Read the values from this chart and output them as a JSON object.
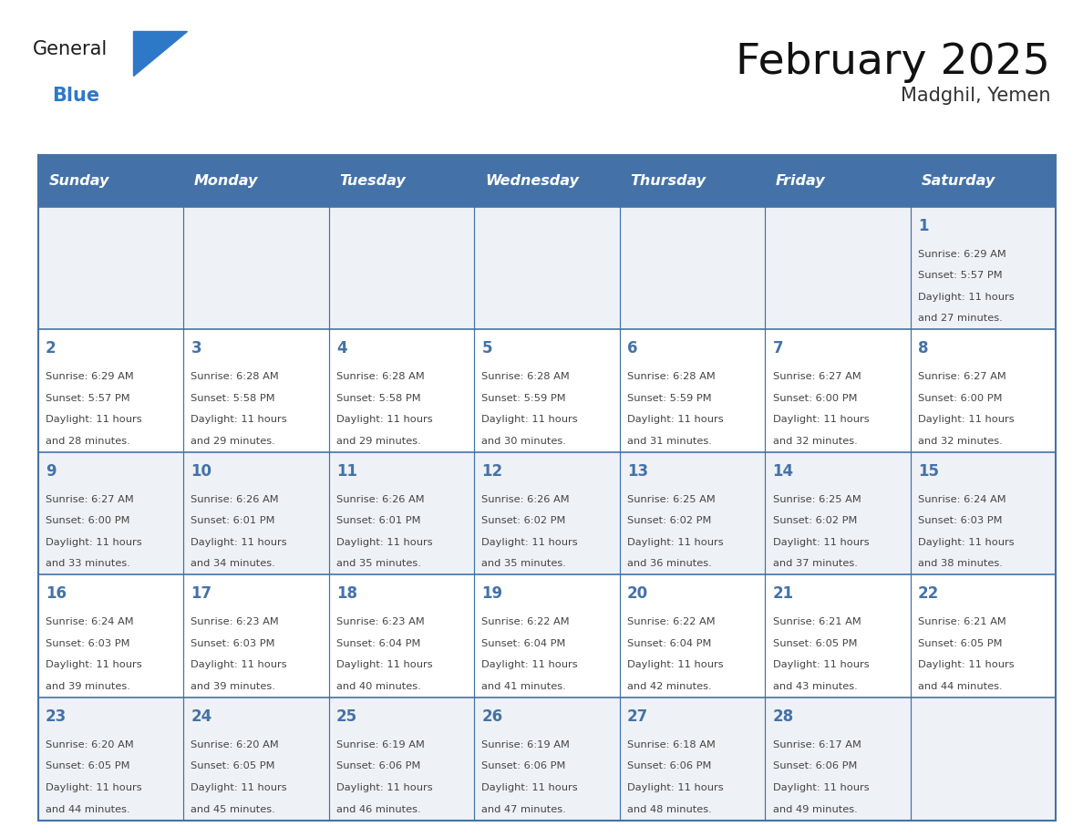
{
  "title": "February 2025",
  "subtitle": "Madghil, Yemen",
  "header_color": "#4472a8",
  "header_text_color": "#ffffff",
  "weekdays": [
    "Sunday",
    "Monday",
    "Tuesday",
    "Wednesday",
    "Thursday",
    "Friday",
    "Saturday"
  ],
  "background_color": "#ffffff",
  "row_bg_odd": "#eef2f7",
  "row_bg_even": "#ffffff",
  "grid_color": "#4472a8",
  "day_color": "#4472a8",
  "text_color": "#444444",
  "logo_general_color": "#1a1a1a",
  "logo_blue_color": "#2e78c8",
  "calendar": [
    [
      null,
      null,
      null,
      null,
      null,
      null,
      {
        "day": 1,
        "sunrise": "6:29 AM",
        "sunset": "5:57 PM",
        "daylight": "11 hours",
        "daylight2": "and 27 minutes."
      }
    ],
    [
      {
        "day": 2,
        "sunrise": "6:29 AM",
        "sunset": "5:57 PM",
        "daylight": "11 hours",
        "daylight2": "and 28 minutes."
      },
      {
        "day": 3,
        "sunrise": "6:28 AM",
        "sunset": "5:58 PM",
        "daylight": "11 hours",
        "daylight2": "and 29 minutes."
      },
      {
        "day": 4,
        "sunrise": "6:28 AM",
        "sunset": "5:58 PM",
        "daylight": "11 hours",
        "daylight2": "and 29 minutes."
      },
      {
        "day": 5,
        "sunrise": "6:28 AM",
        "sunset": "5:59 PM",
        "daylight": "11 hours",
        "daylight2": "and 30 minutes."
      },
      {
        "day": 6,
        "sunrise": "6:28 AM",
        "sunset": "5:59 PM",
        "daylight": "11 hours",
        "daylight2": "and 31 minutes."
      },
      {
        "day": 7,
        "sunrise": "6:27 AM",
        "sunset": "6:00 PM",
        "daylight": "11 hours",
        "daylight2": "and 32 minutes."
      },
      {
        "day": 8,
        "sunrise": "6:27 AM",
        "sunset": "6:00 PM",
        "daylight": "11 hours",
        "daylight2": "and 32 minutes."
      }
    ],
    [
      {
        "day": 9,
        "sunrise": "6:27 AM",
        "sunset": "6:00 PM",
        "daylight": "11 hours",
        "daylight2": "and 33 minutes."
      },
      {
        "day": 10,
        "sunrise": "6:26 AM",
        "sunset": "6:01 PM",
        "daylight": "11 hours",
        "daylight2": "and 34 minutes."
      },
      {
        "day": 11,
        "sunrise": "6:26 AM",
        "sunset": "6:01 PM",
        "daylight": "11 hours",
        "daylight2": "and 35 minutes."
      },
      {
        "day": 12,
        "sunrise": "6:26 AM",
        "sunset": "6:02 PM",
        "daylight": "11 hours",
        "daylight2": "and 35 minutes."
      },
      {
        "day": 13,
        "sunrise": "6:25 AM",
        "sunset": "6:02 PM",
        "daylight": "11 hours",
        "daylight2": "and 36 minutes."
      },
      {
        "day": 14,
        "sunrise": "6:25 AM",
        "sunset": "6:02 PM",
        "daylight": "11 hours",
        "daylight2": "and 37 minutes."
      },
      {
        "day": 15,
        "sunrise": "6:24 AM",
        "sunset": "6:03 PM",
        "daylight": "11 hours",
        "daylight2": "and 38 minutes."
      }
    ],
    [
      {
        "day": 16,
        "sunrise": "6:24 AM",
        "sunset": "6:03 PM",
        "daylight": "11 hours",
        "daylight2": "and 39 minutes."
      },
      {
        "day": 17,
        "sunrise": "6:23 AM",
        "sunset": "6:03 PM",
        "daylight": "11 hours",
        "daylight2": "and 39 minutes."
      },
      {
        "day": 18,
        "sunrise": "6:23 AM",
        "sunset": "6:04 PM",
        "daylight": "11 hours",
        "daylight2": "and 40 minutes."
      },
      {
        "day": 19,
        "sunrise": "6:22 AM",
        "sunset": "6:04 PM",
        "daylight": "11 hours",
        "daylight2": "and 41 minutes."
      },
      {
        "day": 20,
        "sunrise": "6:22 AM",
        "sunset": "6:04 PM",
        "daylight": "11 hours",
        "daylight2": "and 42 minutes."
      },
      {
        "day": 21,
        "sunrise": "6:21 AM",
        "sunset": "6:05 PM",
        "daylight": "11 hours",
        "daylight2": "and 43 minutes."
      },
      {
        "day": 22,
        "sunrise": "6:21 AM",
        "sunset": "6:05 PM",
        "daylight": "11 hours",
        "daylight2": "and 44 minutes."
      }
    ],
    [
      {
        "day": 23,
        "sunrise": "6:20 AM",
        "sunset": "6:05 PM",
        "daylight": "11 hours",
        "daylight2": "and 44 minutes."
      },
      {
        "day": 24,
        "sunrise": "6:20 AM",
        "sunset": "6:05 PM",
        "daylight": "11 hours",
        "daylight2": "and 45 minutes."
      },
      {
        "day": 25,
        "sunrise": "6:19 AM",
        "sunset": "6:06 PM",
        "daylight": "11 hours",
        "daylight2": "and 46 minutes."
      },
      {
        "day": 26,
        "sunrise": "6:19 AM",
        "sunset": "6:06 PM",
        "daylight": "11 hours",
        "daylight2": "and 47 minutes."
      },
      {
        "day": 27,
        "sunrise": "6:18 AM",
        "sunset": "6:06 PM",
        "daylight": "11 hours",
        "daylight2": "and 48 minutes."
      },
      {
        "day": 28,
        "sunrise": "6:17 AM",
        "sunset": "6:06 PM",
        "daylight": "11 hours",
        "daylight2": "and 49 minutes."
      },
      null
    ]
  ]
}
